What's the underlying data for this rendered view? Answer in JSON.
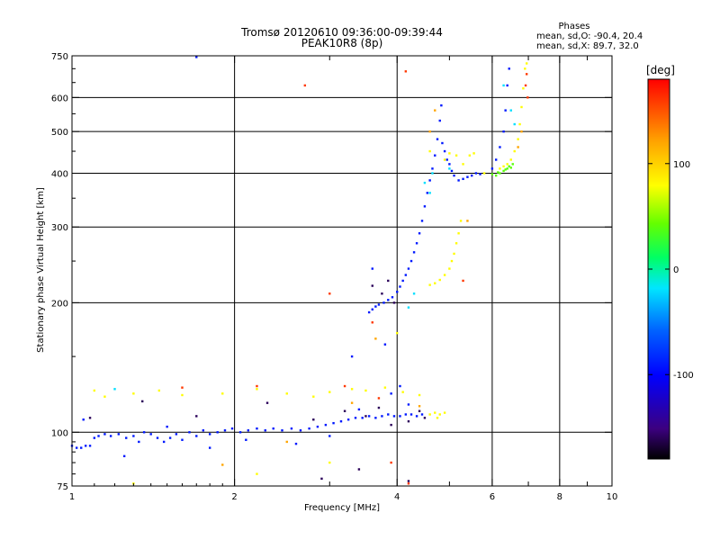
{
  "chart_data": {
    "type": "scatter",
    "title": "Tromsø 20120610 09:36:00-09:39:44",
    "subtitle": "PEAK10R8 (8p)",
    "xlabel": "Frequency [MHz]",
    "ylabel": "Stationary phase Virtual Height [km]",
    "x_scale": "log",
    "y_scale": "log",
    "xlim": [
      1,
      10
    ],
    "ylim": [
      75,
      750
    ],
    "grid": true,
    "x_ticks": [
      {
        "value": 1,
        "label": "1",
        "major": true
      },
      {
        "value": 2,
        "label": "2",
        "major": true
      },
      {
        "value": 3,
        "label": "",
        "major": false
      },
      {
        "value": 4,
        "label": "4",
        "major": true
      },
      {
        "value": 5,
        "label": "",
        "major": false
      },
      {
        "value": 6,
        "label": "6",
        "major": true
      },
      {
        "value": 7,
        "label": "",
        "major": false
      },
      {
        "value": 8,
        "label": "8",
        "major": true
      },
      {
        "value": 9,
        "label": "",
        "major": false
      },
      {
        "value": 10,
        "label": "10",
        "major": true
      }
    ],
    "y_ticks": [
      {
        "value": 75,
        "label": "75"
      },
      {
        "value": 100,
        "label": "100"
      },
      {
        "value": 200,
        "label": "200"
      },
      {
        "value": 300,
        "label": "300"
      },
      {
        "value": 400,
        "label": "400"
      },
      {
        "value": 500,
        "label": "500"
      },
      {
        "value": 600,
        "label": "600"
      },
      {
        "value": 750,
        "label": "750"
      }
    ],
    "stats": {
      "heading": "Phases",
      "line_o": "mean, sd,O: -90.4, 20.4",
      "line_x": "mean, sd,X:  89.7, 32.0"
    },
    "colorbar": {
      "label": "[deg]",
      "range": [
        -180,
        180
      ],
      "ticks": [
        {
          "value": 100,
          "label": "100"
        },
        {
          "value": 0,
          "label": "0"
        },
        {
          "value": -100,
          "label": "-100"
        }
      ]
    },
    "series": [
      {
        "phase": -90,
        "points": [
          [
            1.0,
            93
          ],
          [
            1.02,
            92
          ],
          [
            1.04,
            92
          ],
          [
            1.06,
            93
          ],
          [
            1.08,
            93
          ],
          [
            1.1,
            97
          ],
          [
            1.12,
            98
          ],
          [
            1.15,
            99
          ],
          [
            1.18,
            98
          ],
          [
            1.22,
            99
          ],
          [
            1.26,
            97
          ],
          [
            1.3,
            98
          ],
          [
            1.33,
            95
          ],
          [
            1.36,
            100
          ],
          [
            1.4,
            99
          ],
          [
            1.44,
            97
          ],
          [
            1.48,
            95
          ],
          [
            1.52,
            97
          ],
          [
            1.56,
            99
          ],
          [
            1.6,
            96
          ],
          [
            1.65,
            100
          ],
          [
            1.7,
            98
          ],
          [
            1.75,
            101
          ],
          [
            1.8,
            99
          ],
          [
            1.86,
            100
          ],
          [
            1.92,
            101
          ],
          [
            1.98,
            102
          ],
          [
            2.05,
            100
          ],
          [
            2.12,
            101
          ],
          [
            2.2,
            102
          ],
          [
            2.28,
            101
          ],
          [
            2.36,
            102
          ],
          [
            2.45,
            101
          ],
          [
            2.55,
            102
          ],
          [
            2.65,
            101
          ],
          [
            2.75,
            102
          ],
          [
            2.85,
            103
          ],
          [
            2.95,
            104
          ],
          [
            3.05,
            105
          ],
          [
            3.15,
            106
          ],
          [
            3.25,
            107
          ],
          [
            3.35,
            108
          ],
          [
            3.45,
            108
          ],
          [
            3.55,
            109
          ],
          [
            3.65,
            108
          ],
          [
            3.75,
            109
          ],
          [
            3.85,
            110
          ],
          [
            3.95,
            109
          ],
          [
            4.05,
            109
          ],
          [
            4.15,
            110
          ],
          [
            4.25,
            110
          ],
          [
            4.35,
            109
          ],
          [
            4.45,
            110
          ],
          [
            3.55,
            190
          ],
          [
            3.6,
            193
          ],
          [
            3.65,
            196
          ],
          [
            3.7,
            198
          ],
          [
            3.78,
            200
          ],
          [
            3.85,
            203
          ],
          [
            3.92,
            206
          ],
          [
            4.0,
            212
          ],
          [
            4.05,
            218
          ],
          [
            4.1,
            225
          ],
          [
            4.15,
            232
          ],
          [
            4.2,
            240
          ],
          [
            4.25,
            250
          ],
          [
            4.3,
            262
          ],
          [
            4.35,
            275
          ],
          [
            4.4,
            290
          ],
          [
            4.45,
            310
          ],
          [
            4.5,
            335
          ],
          [
            4.55,
            360
          ],
          [
            4.6,
            385
          ],
          [
            4.65,
            410
          ],
          [
            4.7,
            440
          ],
          [
            4.75,
            480
          ],
          [
            4.8,
            530
          ],
          [
            4.83,
            575
          ],
          [
            4.85,
            470
          ],
          [
            4.9,
            450
          ],
          [
            4.95,
            430
          ],
          [
            5.0,
            420
          ],
          [
            5.05,
            405
          ],
          [
            5.1,
            395
          ],
          [
            5.2,
            385
          ],
          [
            5.3,
            388
          ],
          [
            5.4,
            392
          ],
          [
            5.5,
            395
          ],
          [
            5.6,
            400
          ],
          [
            5.7,
            398
          ],
          [
            6.0,
            410
          ],
          [
            6.1,
            430
          ],
          [
            6.2,
            460
          ],
          [
            6.3,
            500
          ],
          [
            6.35,
            560
          ],
          [
            6.4,
            640
          ],
          [
            6.45,
            700
          ],
          [
            1.05,
            107
          ],
          [
            1.25,
            88
          ],
          [
            1.5,
            103
          ],
          [
            1.8,
            92
          ],
          [
            2.1,
            96
          ],
          [
            2.6,
            94
          ],
          [
            3.0,
            98
          ],
          [
            3.4,
            113
          ],
          [
            3.9,
            123
          ],
          [
            4.2,
            116
          ],
          [
            1.7,
            745
          ],
          [
            3.3,
            150
          ],
          [
            3.8,
            160
          ],
          [
            4.05,
            128
          ],
          [
            3.6,
            240
          ]
        ]
      },
      {
        "phase": -160,
        "points": [
          [
            1.08,
            108
          ],
          [
            1.35,
            118
          ],
          [
            1.7,
            109
          ],
          [
            2.3,
            117
          ],
          [
            2.8,
            107
          ],
          [
            3.2,
            112
          ],
          [
            3.5,
            109
          ],
          [
            3.7,
            114
          ],
          [
            3.9,
            104
          ],
          [
            4.2,
            106
          ],
          [
            4.4,
            112
          ],
          [
            4.5,
            108
          ],
          [
            3.6,
            219
          ],
          [
            3.75,
            210
          ],
          [
            3.85,
            225
          ],
          [
            4.2,
            77
          ],
          [
            3.4,
            82
          ],
          [
            2.9,
            78
          ],
          [
            3.95,
            200
          ]
        ]
      },
      {
        "phase": 80,
        "points": [
          [
            1.1,
            125
          ],
          [
            1.15,
            121
          ],
          [
            1.3,
            123
          ],
          [
            1.45,
            125
          ],
          [
            1.6,
            122
          ],
          [
            1.9,
            123
          ],
          [
            2.2,
            126
          ],
          [
            2.5,
            123
          ],
          [
            2.8,
            121
          ],
          [
            3.0,
            124
          ],
          [
            3.3,
            126
          ],
          [
            3.5,
            125
          ],
          [
            3.8,
            127
          ],
          [
            4.1,
            124
          ],
          [
            4.4,
            122
          ],
          [
            4.6,
            110
          ],
          [
            4.7,
            111
          ],
          [
            4.8,
            110
          ],
          [
            4.9,
            111
          ],
          [
            4.75,
            108
          ],
          [
            4.6,
            220
          ],
          [
            4.7,
            222
          ],
          [
            4.8,
            226
          ],
          [
            4.9,
            232
          ],
          [
            5.0,
            240
          ],
          [
            5.05,
            250
          ],
          [
            5.1,
            260
          ],
          [
            5.15,
            275
          ],
          [
            5.2,
            290
          ],
          [
            5.25,
            310
          ],
          [
            4.9,
            430
          ],
          [
            5.0,
            445
          ],
          [
            5.15,
            440
          ],
          [
            5.3,
            420
          ],
          [
            5.45,
            440
          ],
          [
            5.55,
            445
          ],
          [
            6.2,
            410
          ],
          [
            6.3,
            415
          ],
          [
            6.4,
            420
          ],
          [
            6.5,
            430
          ],
          [
            6.6,
            450
          ],
          [
            6.7,
            480
          ],
          [
            6.75,
            520
          ],
          [
            6.8,
            570
          ],
          [
            6.85,
            630
          ],
          [
            6.9,
            700
          ],
          [
            6.95,
            720
          ],
          [
            4.0,
            170
          ],
          [
            3.0,
            85
          ],
          [
            2.2,
            80
          ],
          [
            1.3,
            76
          ],
          [
            4.6,
            450
          ],
          [
            5.8,
            400
          ]
        ]
      },
      {
        "phase": 40,
        "points": [
          [
            6.1,
            395
          ],
          [
            6.2,
            400
          ],
          [
            6.3,
            405
          ],
          [
            6.4,
            410
          ],
          [
            6.5,
            412
          ],
          [
            6.55,
            420
          ],
          [
            6.0,
            398
          ],
          [
            6.15,
            402
          ],
          [
            6.35,
            408
          ],
          [
            6.45,
            415
          ]
        ]
      },
      {
        "phase": -20,
        "points": [
          [
            4.6,
            360
          ],
          [
            4.65,
            400
          ],
          [
            4.5,
            380
          ],
          [
            6.3,
            640
          ],
          [
            6.5,
            560
          ],
          [
            6.6,
            520
          ],
          [
            4.2,
            195
          ],
          [
            4.3,
            210
          ],
          [
            5.0,
            410
          ],
          [
            1.2,
            126
          ]
        ]
      },
      {
        "phase": 160,
        "points": [
          [
            2.7,
            640
          ],
          [
            3.0,
            210
          ],
          [
            4.15,
            690
          ],
          [
            3.6,
            180
          ],
          [
            2.2,
            128
          ],
          [
            3.9,
            85
          ],
          [
            1.6,
            127
          ],
          [
            4.2,
            76
          ],
          [
            3.2,
            128
          ],
          [
            5.3,
            225
          ],
          [
            6.95,
            680
          ],
          [
            6.92,
            640
          ],
          [
            6.98,
            600
          ],
          [
            3.7,
            120
          ]
        ]
      },
      {
        "phase": 120,
        "points": [
          [
            4.7,
            560
          ],
          [
            4.6,
            500
          ],
          [
            6.8,
            500
          ],
          [
            6.7,
            460
          ],
          [
            3.65,
            165
          ],
          [
            1.9,
            84
          ],
          [
            3.3,
            117
          ],
          [
            5.4,
            310
          ],
          [
            2.5,
            95
          ],
          [
            4.4,
            115
          ]
        ]
      }
    ]
  }
}
